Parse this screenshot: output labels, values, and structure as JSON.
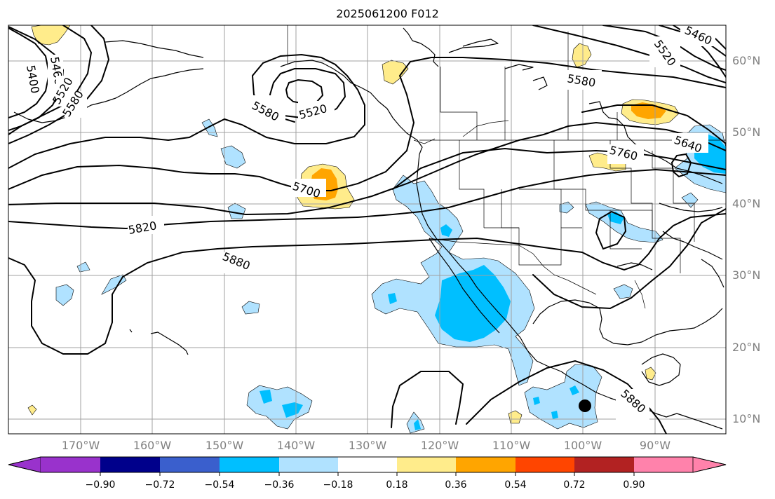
{
  "title": "2025061200 F012",
  "lat_labels": [
    "60°N",
    "50°N",
    "40°N",
    "30°N",
    "20°N",
    "10°N"
  ],
  "lon_labels": [
    "170°W",
    "160°W",
    "150°W",
    "140°W",
    "130°W",
    "120°W",
    "110°W",
    "100°W",
    "90°W"
  ],
  "contour_labels": [
    "5400",
    "5460",
    "5520",
    "5580",
    "5580",
    "5520",
    "5700",
    "5820",
    "5880",
    "5580",
    "5520",
    "5460",
    "5760",
    "5640",
    "5880"
  ],
  "colorbar": {
    "ticks": [
      "−0.90",
      "−0.72",
      "−0.54",
      "−0.36",
      "−0.18",
      "0.18",
      "0.36",
      "0.54",
      "0.72",
      "0.90"
    ],
    "colors": [
      "#9932cc",
      "#00008b",
      "#3a5fcd",
      "#00bfff",
      "#b0e2ff",
      "#ffffff",
      "#ffec8b",
      "#ffa500",
      "#ff4500",
      "#b22222",
      "#ff82ab"
    ]
  },
  "colors": {
    "coast": "#000000",
    "grid": "#999999",
    "contour": "#000000",
    "marker": "#000000"
  }
}
